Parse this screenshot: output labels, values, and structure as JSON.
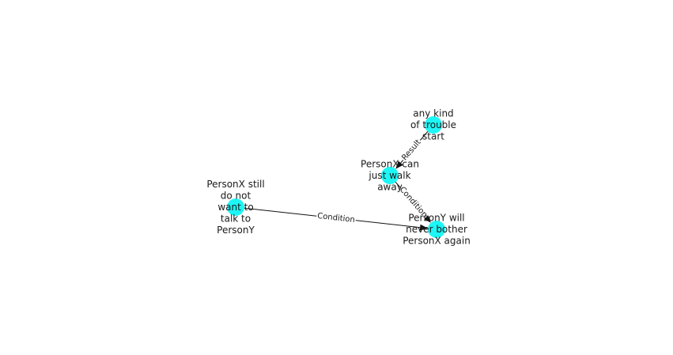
{
  "colors": {
    "node_fill": "#1ef6f6",
    "edge": "#111111",
    "label_bg": "#ffffff",
    "text": "#1a1a1a"
  },
  "nodes": [
    {
      "id": "trouble",
      "label_lines": [
        "any kind",
        "of trouble",
        "start"
      ]
    },
    {
      "id": "walk",
      "label_lines": [
        "PersonX can",
        "just walk",
        "away"
      ]
    },
    {
      "id": "still",
      "label_lines": [
        "PersonX still",
        "do not",
        "want to",
        "talk to",
        "PersonY"
      ]
    },
    {
      "id": "bother",
      "label_lines": [
        "PersonY will",
        "never bother",
        "PersonX again"
      ]
    }
  ],
  "edges": [
    {
      "from": "trouble",
      "to": "walk",
      "label": "Result"
    },
    {
      "from": "walk",
      "to": "bother",
      "label": "Condition"
    },
    {
      "from": "still",
      "to": "bother",
      "label": "Condition"
    }
  ]
}
